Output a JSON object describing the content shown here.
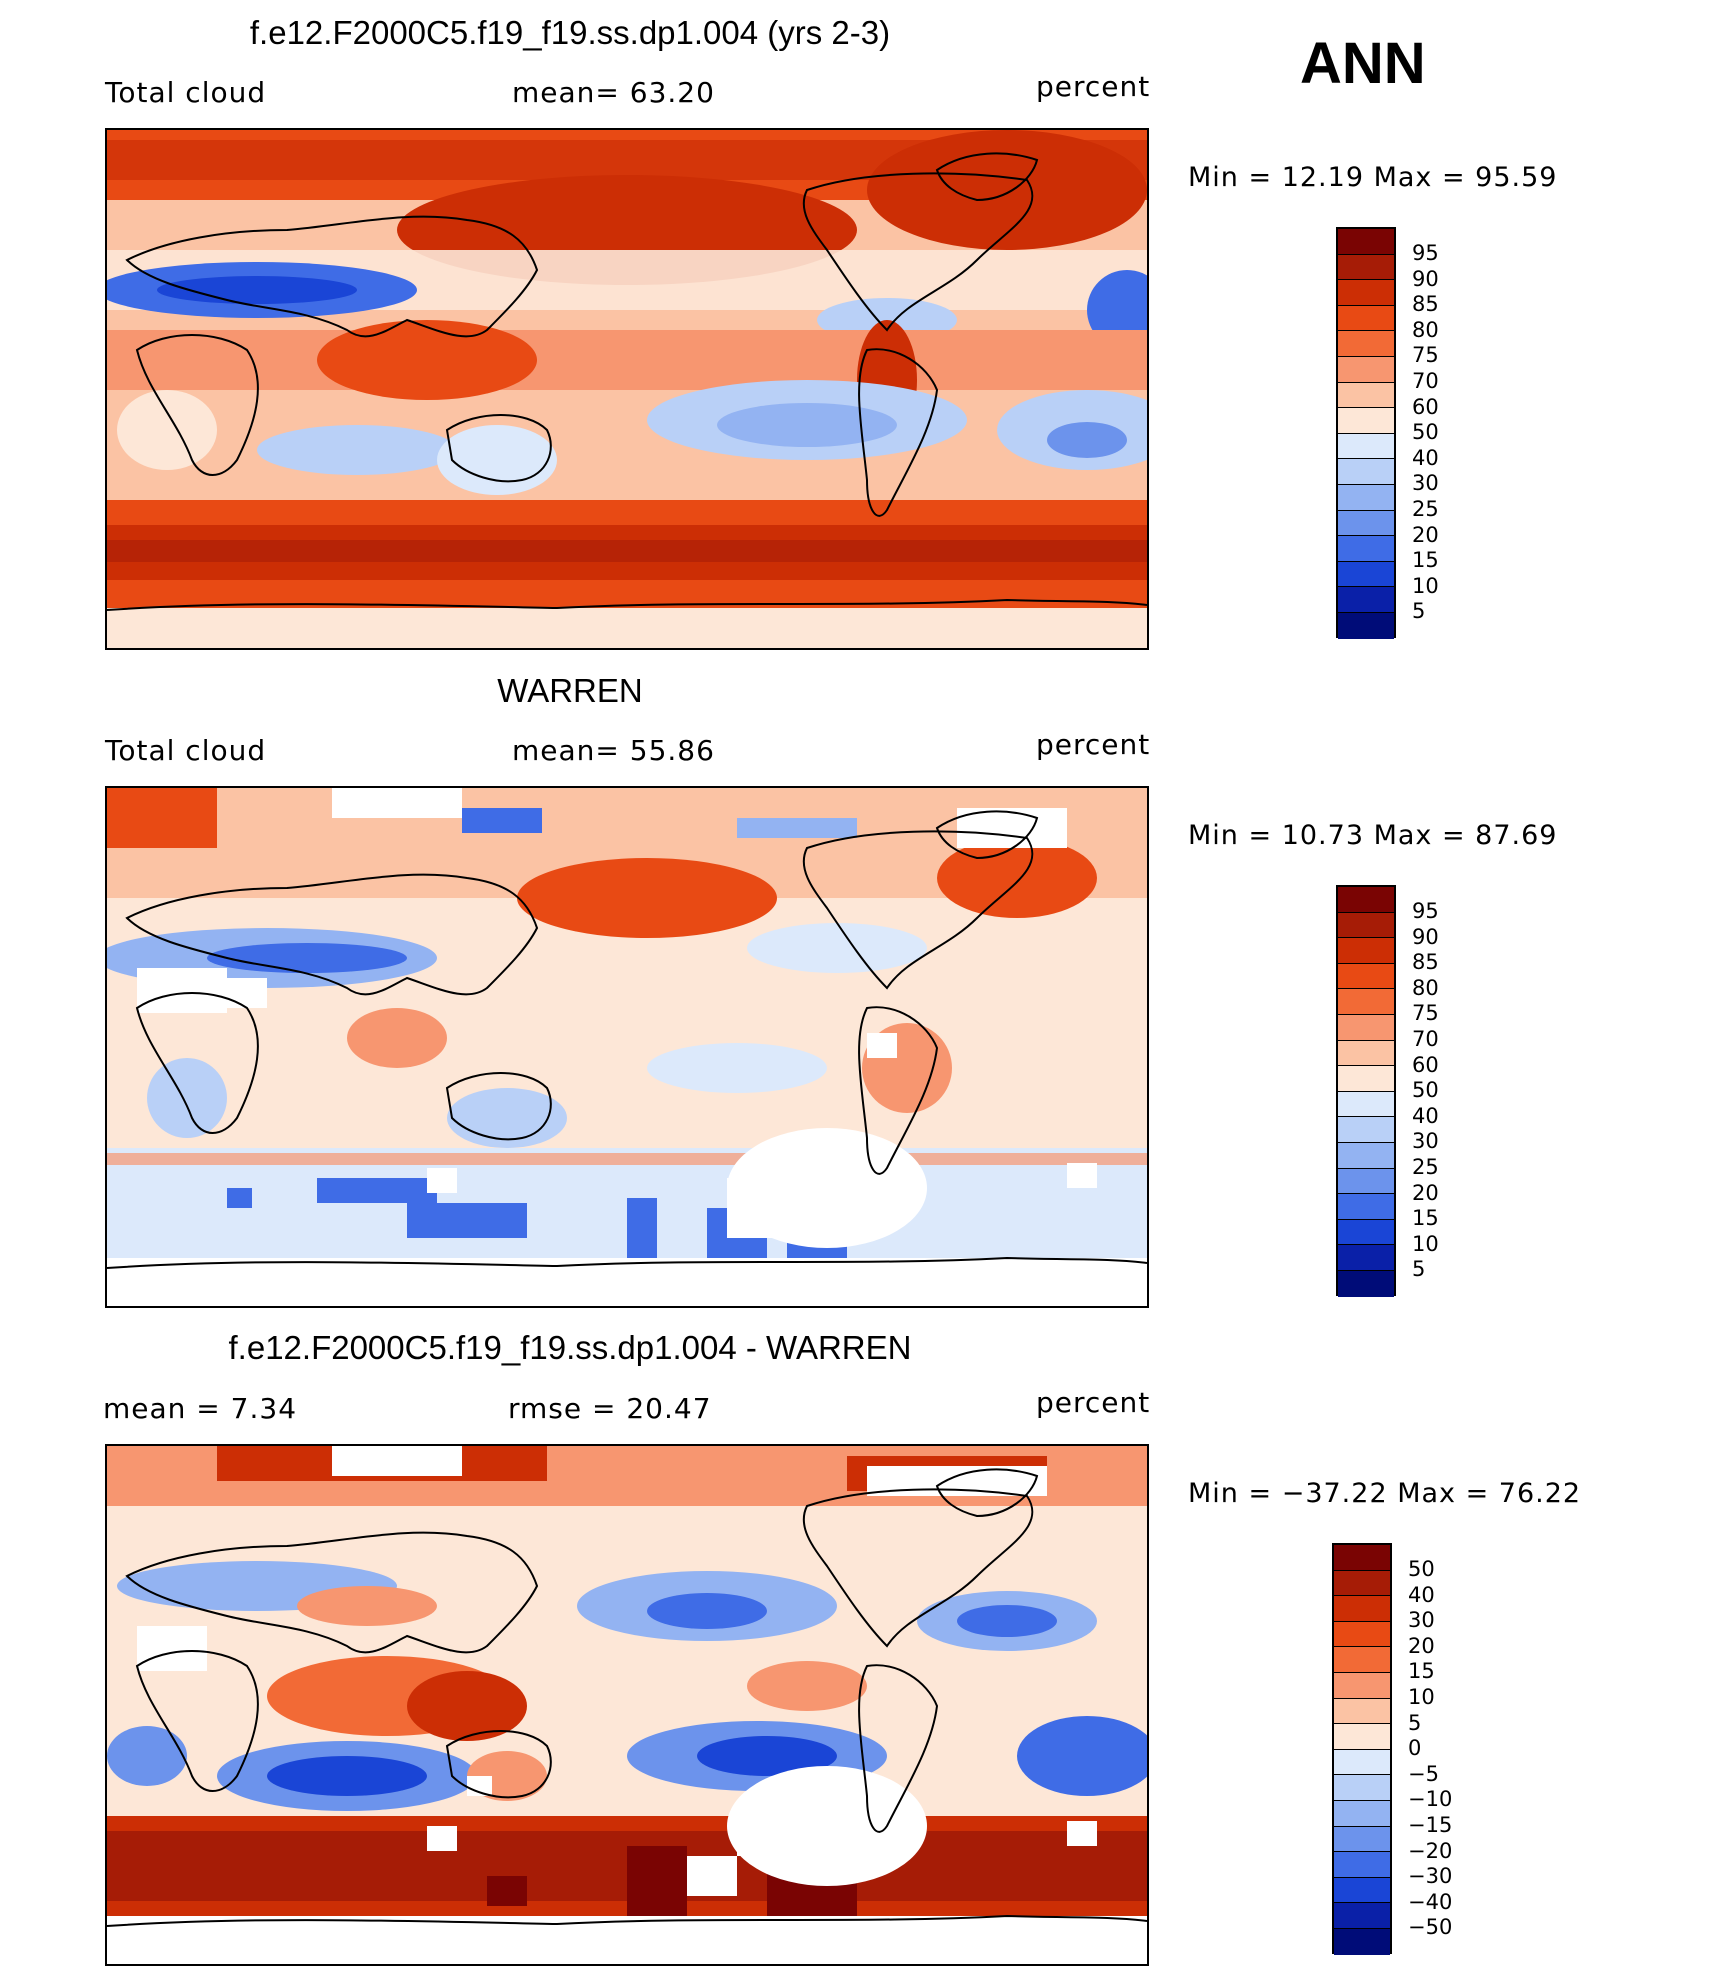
{
  "season": "ANN",
  "panels": [
    {
      "title": "f.e12.F2000C5.f19_f19.ss.dp1.004 (yrs 2-3)",
      "left_text": "Total cloud",
      "mid_text": "mean=   63.20",
      "units": "percent",
      "minmax": "Min =   12.19 Max =   95.59",
      "colorbar": [
        "95",
        "90",
        "85",
        "80",
        "75",
        "70",
        "60",
        "50",
        "40",
        "30",
        "25",
        "20",
        "15",
        "10",
        "5"
      ]
    },
    {
      "title": "WARREN",
      "left_text": "Total cloud",
      "mid_text": "mean=   55.86",
      "units": "percent",
      "minmax": "Min =   10.73 Max =   87.69",
      "colorbar": [
        "95",
        "90",
        "85",
        "80",
        "75",
        "70",
        "60",
        "50",
        "40",
        "30",
        "25",
        "20",
        "15",
        "10",
        "5"
      ]
    },
    {
      "title": "f.e12.F2000C5.f19_f19.ss.dp1.004 - WARREN",
      "left_text": "mean =     7.34",
      "mid_text": "rmse =   20.47",
      "units": "percent",
      "minmax": "Min = −37.22 Max =   76.22",
      "colorbar": [
        "50",
        "40",
        "30",
        "20",
        "15",
        "10",
        "5",
        "0",
        "−5",
        "−10",
        "−15",
        "−20",
        "−30",
        "−40",
        "−50"
      ]
    }
  ],
  "colors": {
    "scale": [
      "#7a0403",
      "#a61c06",
      "#cc2e05",
      "#e84a14",
      "#f26a36",
      "#f79670",
      "#fbc3a4",
      "#fde7d7",
      "#dce9fb",
      "#b9d0f7",
      "#93b3f2",
      "#6c93ec",
      "#3f6ce6",
      "#1a45d6",
      "#0a20a8",
      "#000c78"
    ]
  }
}
